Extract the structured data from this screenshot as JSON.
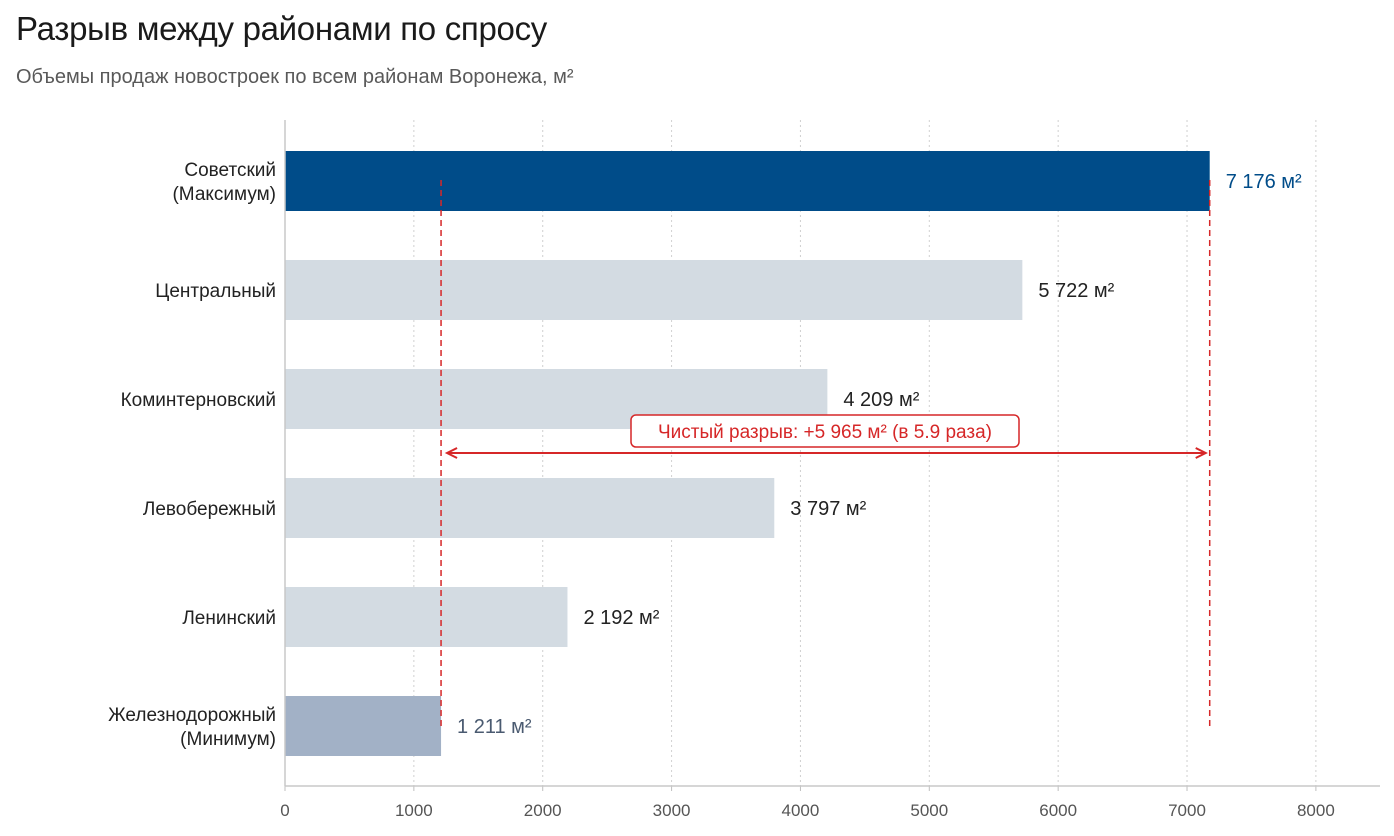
{
  "header": {
    "title": "Разрыв между районами по спросу",
    "subtitle": "Объемы продаж новостроек по всем районам Воронежа, м²"
  },
  "colors": {
    "max_bar": "#004c89",
    "default_bar": "#d3dbe2",
    "min_bar": "#a2b1c6",
    "annotation": "#d62728",
    "max_label": "#004c89",
    "min_label": "#4a5a70",
    "default_label": "#222222"
  },
  "chart_data": {
    "type": "bar",
    "orientation": "horizontal",
    "categories": [
      [
        "Советский",
        "(Максимум)"
      ],
      [
        "Центральный"
      ],
      [
        "Коминтерновский"
      ],
      [
        "Левобережный"
      ],
      [
        "Ленинский"
      ],
      [
        "Железнодорожный",
        "(Минимум)"
      ]
    ],
    "values": [
      7176,
      5722,
      4209,
      3797,
      2192,
      1211
    ],
    "value_labels": [
      "7 176 м²",
      "5 722 м²",
      "4 209 м²",
      "3 797 м²",
      "2 192 м²",
      "1 211 м²"
    ],
    "highlight": [
      "max",
      "default",
      "default",
      "default",
      "default",
      "min"
    ],
    "xlim": [
      0,
      8500
    ],
    "xticks": [
      0,
      1000,
      2000,
      3000,
      4000,
      5000,
      6000,
      7000,
      8000
    ],
    "grid": "vertical dotted",
    "annotation": {
      "text": "Чистый разрыв: +5 965 м² (в 5.9 раза)",
      "from": 1211,
      "to": 7176
    }
  }
}
